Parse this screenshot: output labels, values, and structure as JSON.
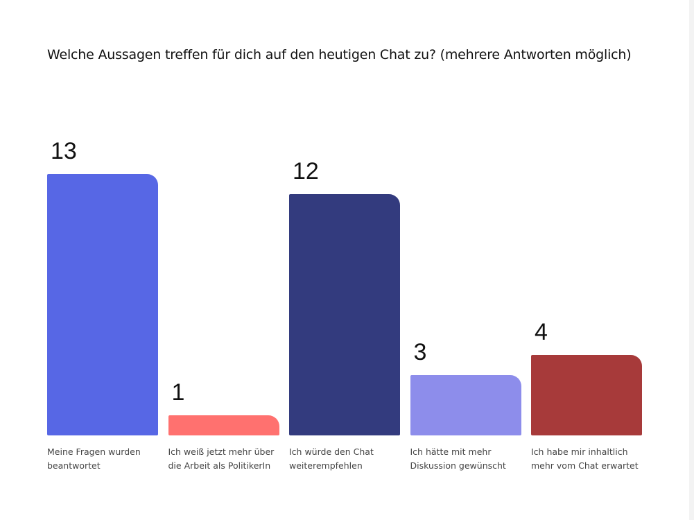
{
  "chart_data": {
    "type": "bar",
    "title": "Welche Aussagen treffen für dich auf den heutigen Chat zu? (mehrere Antworten möglich)",
    "categories": [
      [
        "Meine Fragen wurden",
        "beantwortet"
      ],
      [
        "Ich weiß jetzt mehr über",
        "die Arbeit als PolitikerIn"
      ],
      [
        "Ich würde den Chat",
        "weiterempfehlen"
      ],
      [
        "Ich hätte mit mehr",
        "Diskussion gewünscht"
      ],
      [
        "Ich habe mir inhaltlich",
        "mehr vom Chat erwartet"
      ]
    ],
    "values": [
      13,
      1,
      12,
      3,
      4
    ],
    "colors": [
      "#5767e5",
      "#ff716f",
      "#333b7e",
      "#8d8deb",
      "#a73a3a"
    ],
    "xlabel": "",
    "ylabel": "",
    "ylim": [
      0,
      13
    ],
    "grid": false
  }
}
